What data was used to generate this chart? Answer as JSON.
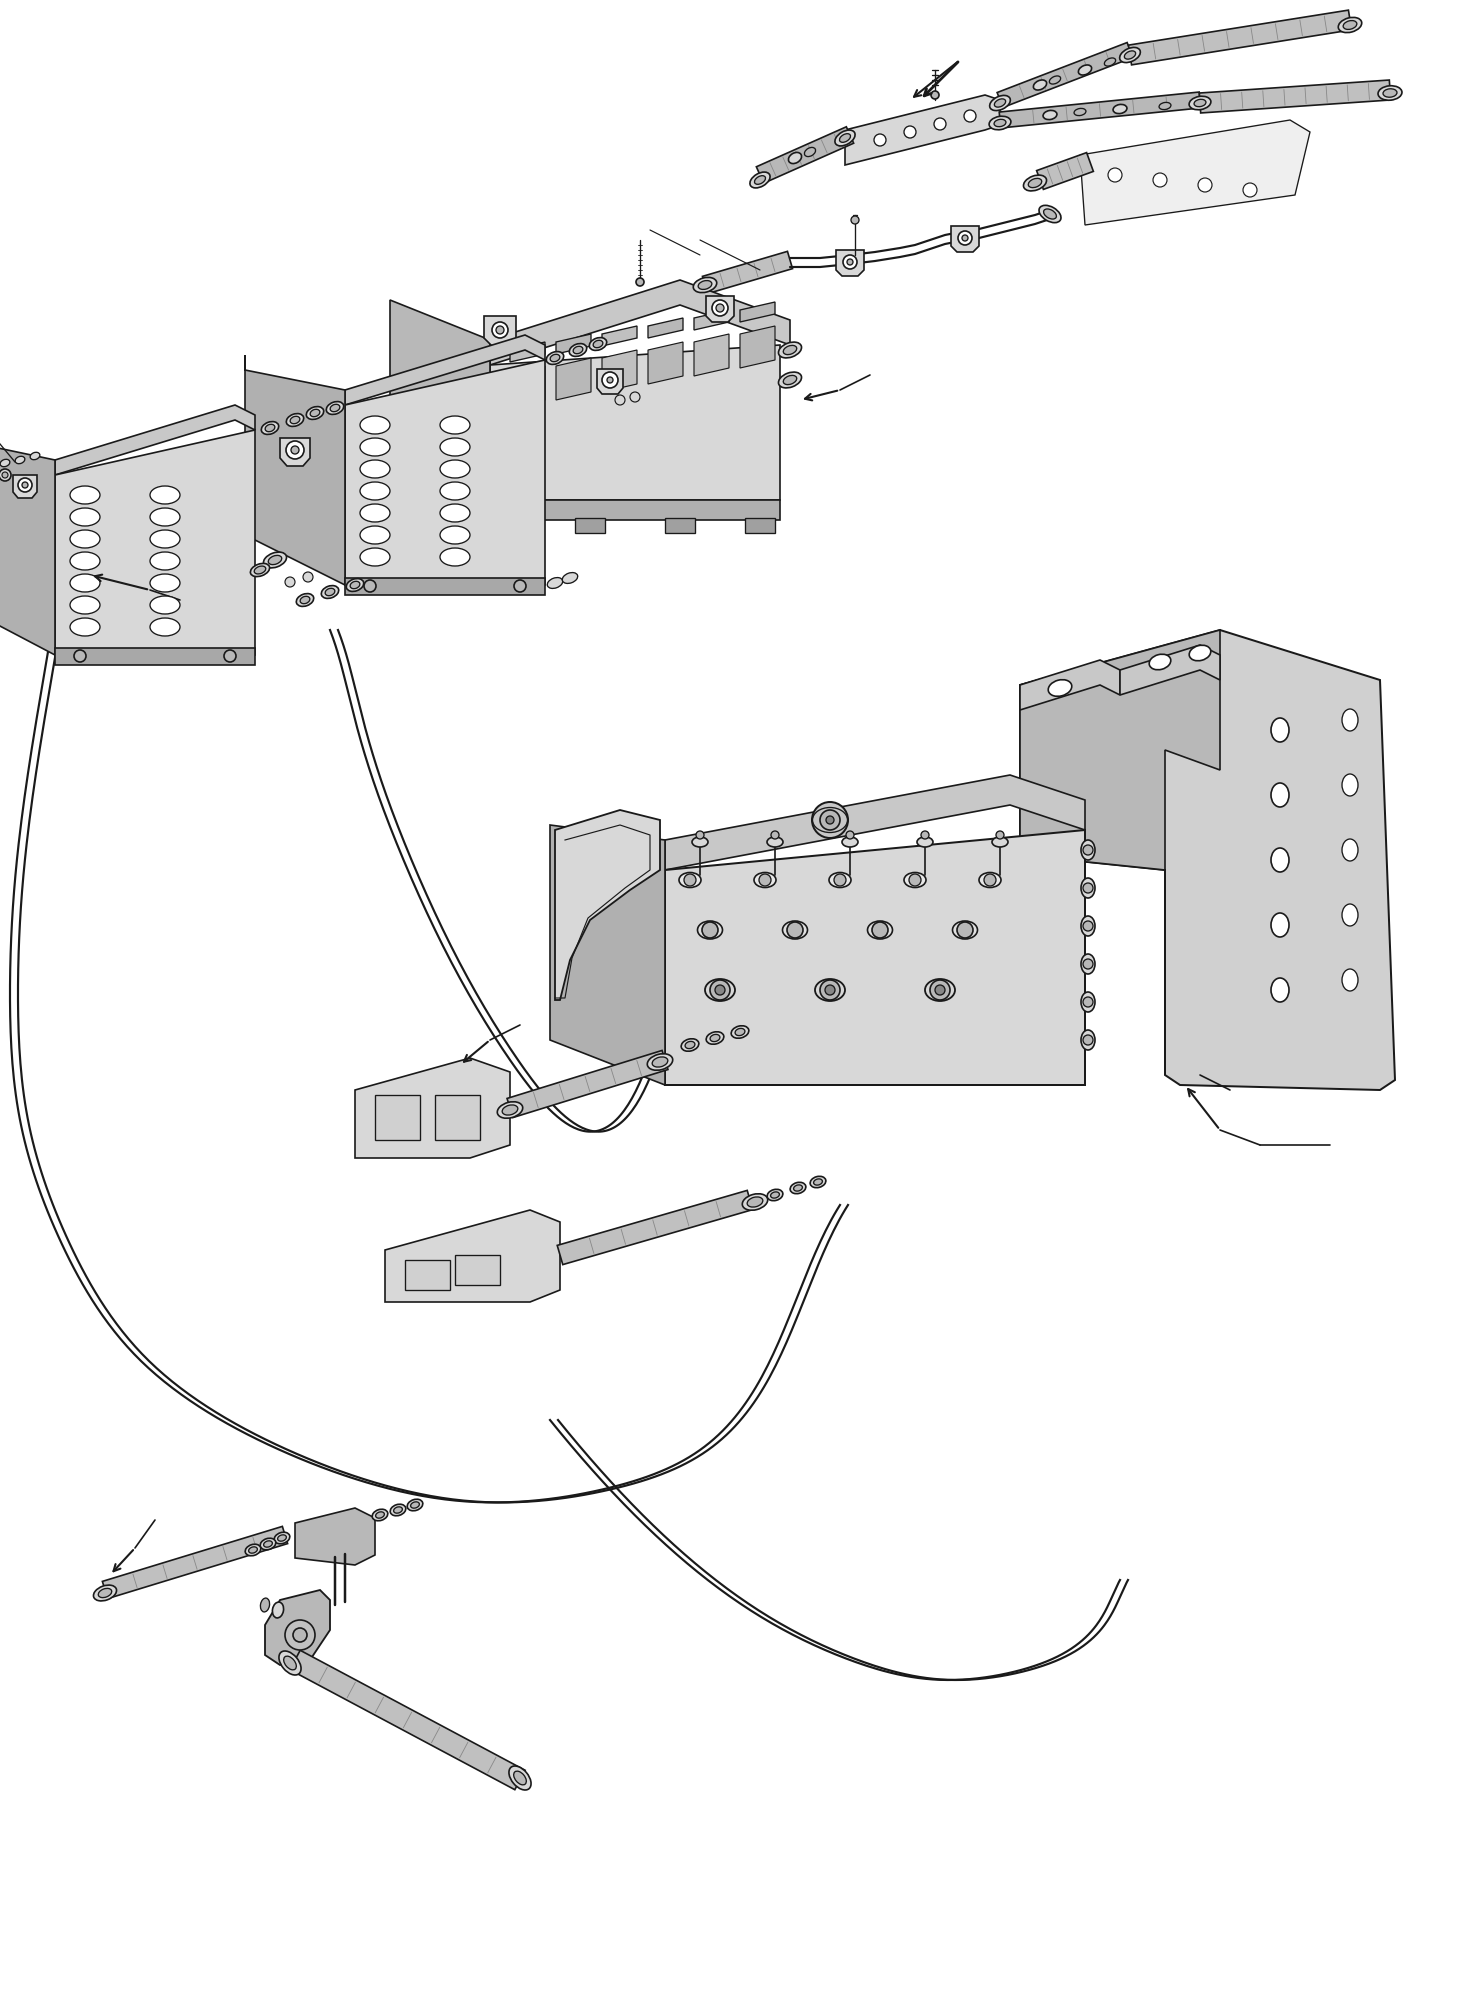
{
  "background_color": "#ffffff",
  "line_color": "#1a1a1a",
  "gray_light": "#d8d8d8",
  "gray_mid": "#b8b8b8",
  "gray_dark": "#888888",
  "gray_hatch": "#c0c0c0",
  "fig_width": 14.75,
  "fig_height": 19.91,
  "dpi": 100
}
